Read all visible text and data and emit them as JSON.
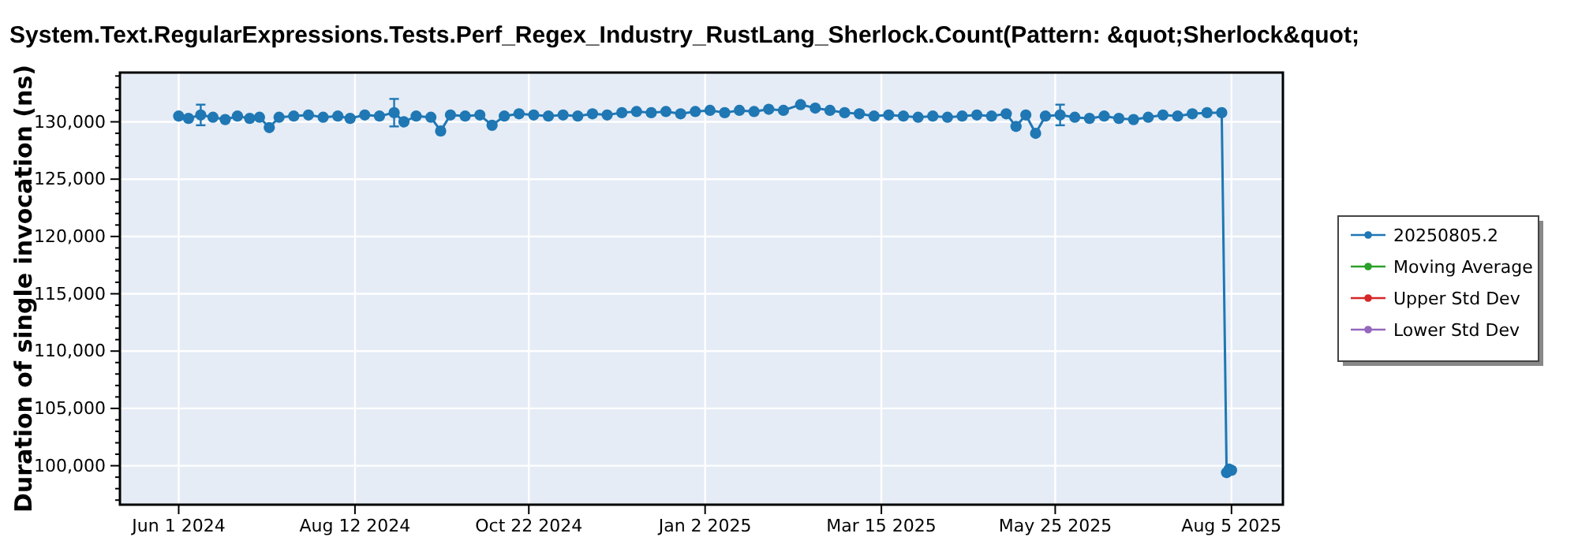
{
  "chart_data": {
    "type": "line",
    "title": "System.Text.RegularExpressions.Tests.Perf_Regex_Industry_RustLang_Sherlock.Count(Pattern: &quot;Sherlock&quot;",
    "ylabel": "Duration of single invocation (ns)",
    "xlim": [
      "2024-05-08",
      "2025-08-26"
    ],
    "xticks": [
      {
        "value": "2024-06-01",
        "label": "Jun 1 2024"
      },
      {
        "value": "2024-08-12",
        "label": "Aug 12 2024"
      },
      {
        "value": "2024-10-22",
        "label": "Oct 22 2024"
      },
      {
        "value": "2025-01-02",
        "label": "Jan 2 2025"
      },
      {
        "value": "2025-03-15",
        "label": "Mar 15 2025"
      },
      {
        "value": "2025-05-25",
        "label": "May 25 2025"
      },
      {
        "value": "2025-08-05",
        "label": "Aug 5 2025"
      }
    ],
    "ylim": [
      96600,
      134300
    ],
    "yticks": [
      {
        "value": 97000,
        "label": null
      },
      {
        "value": 98000,
        "label": null
      },
      {
        "value": 99000,
        "label": null
      },
      {
        "value": 100000,
        "label": "100,000"
      },
      {
        "value": 101000,
        "label": null
      },
      {
        "value": 102000,
        "label": null
      },
      {
        "value": 103000,
        "label": null
      },
      {
        "value": 104000,
        "label": null
      },
      {
        "value": 105000,
        "label": "105,000"
      },
      {
        "value": 106000,
        "label": null
      },
      {
        "value": 107000,
        "label": null
      },
      {
        "value": 108000,
        "label": null
      },
      {
        "value": 109000,
        "label": null
      },
      {
        "value": 110000,
        "label": "110,000"
      },
      {
        "value": 111000,
        "label": null
      },
      {
        "value": 112000,
        "label": null
      },
      {
        "value": 113000,
        "label": null
      },
      {
        "value": 114000,
        "label": null
      },
      {
        "value": 115000,
        "label": "115,000"
      },
      {
        "value": 116000,
        "label": null
      },
      {
        "value": 117000,
        "label": null
      },
      {
        "value": 118000,
        "label": null
      },
      {
        "value": 119000,
        "label": null
      },
      {
        "value": 120000,
        "label": "120,000"
      },
      {
        "value": 121000,
        "label": null
      },
      {
        "value": 122000,
        "label": null
      },
      {
        "value": 123000,
        "label": null
      },
      {
        "value": 124000,
        "label": null
      },
      {
        "value": 125000,
        "label": "125,000"
      },
      {
        "value": 126000,
        "label": null
      },
      {
        "value": 127000,
        "label": null
      },
      {
        "value": 128000,
        "label": null
      },
      {
        "value": 129000,
        "label": null
      },
      {
        "value": 130000,
        "label": "130,000"
      },
      {
        "value": 131000,
        "label": null
      },
      {
        "value": 132000,
        "label": null
      },
      {
        "value": 133000,
        "label": null
      },
      {
        "value": 134000,
        "label": null
      }
    ],
    "grid": true,
    "legend": "right",
    "marker": "circle",
    "line_style": "solid",
    "series": [
      {
        "name": "20250805.2",
        "color": "#1f77b4",
        "x": [
          "2024-06-01",
          "2024-06-05",
          "2024-06-10",
          "2024-06-15",
          "2024-06-20",
          "2024-06-25",
          "2024-06-30",
          "2024-07-04",
          "2024-07-08",
          "2024-07-12",
          "2024-07-18",
          "2024-07-24",
          "2024-07-30",
          "2024-08-05",
          "2024-08-10",
          "2024-08-16",
          "2024-08-22",
          "2024-08-28",
          "2024-09-01",
          "2024-09-06",
          "2024-09-12",
          "2024-09-16",
          "2024-09-20",
          "2024-09-26",
          "2024-10-02",
          "2024-10-07",
          "2024-10-12",
          "2024-10-18",
          "2024-10-24",
          "2024-10-30",
          "2024-11-05",
          "2024-11-11",
          "2024-11-17",
          "2024-11-23",
          "2024-11-29",
          "2024-12-05",
          "2024-12-11",
          "2024-12-17",
          "2024-12-23",
          "2024-12-29",
          "2025-01-04",
          "2025-01-10",
          "2025-01-16",
          "2025-01-22",
          "2025-01-28",
          "2025-02-03",
          "2025-02-10",
          "2025-02-16",
          "2025-02-22",
          "2025-02-28",
          "2025-03-06",
          "2025-03-12",
          "2025-03-18",
          "2025-03-24",
          "2025-03-30",
          "2025-04-05",
          "2025-04-11",
          "2025-04-17",
          "2025-04-23",
          "2025-04-29",
          "2025-05-05",
          "2025-05-09",
          "2025-05-13",
          "2025-05-17",
          "2025-05-21",
          "2025-05-27",
          "2025-06-02",
          "2025-06-08",
          "2025-06-14",
          "2025-06-20",
          "2025-06-26",
          "2025-07-02",
          "2025-07-08",
          "2025-07-14",
          "2025-07-20",
          "2025-07-26",
          "2025-08-01",
          "2025-08-03",
          "2025-08-04",
          "2025-08-05"
        ],
        "values": [
          130500,
          130300,
          130600,
          130400,
          130200,
          130500,
          130300,
          130400,
          129500,
          130400,
          130500,
          130600,
          130400,
          130500,
          130300,
          130600,
          130500,
          130800,
          130000,
          130500,
          130400,
          129200,
          130600,
          130500,
          130600,
          129700,
          130500,
          130700,
          130600,
          130500,
          130600,
          130500,
          130700,
          130600,
          130800,
          130900,
          130800,
          130900,
          130700,
          130900,
          131000,
          130800,
          131000,
          130900,
          131100,
          131000,
          131500,
          131200,
          131000,
          130800,
          130700,
          130500,
          130600,
          130500,
          130400,
          130500,
          130400,
          130500,
          130600,
          130500,
          130700,
          129600,
          130600,
          129000,
          130500,
          130600,
          130400,
          130300,
          130500,
          130300,
          130200,
          130400,
          130600,
          130500,
          130700,
          130800,
          130800,
          99400,
          99700,
          99600
        ],
        "errors": [
          null,
          null,
          900,
          null,
          null,
          null,
          null,
          null,
          null,
          null,
          null,
          null,
          null,
          null,
          null,
          null,
          null,
          1200,
          null,
          null,
          null,
          null,
          null,
          null,
          null,
          null,
          null,
          null,
          null,
          null,
          null,
          null,
          null,
          null,
          null,
          null,
          null,
          null,
          null,
          null,
          null,
          null,
          null,
          null,
          null,
          null,
          null,
          null,
          null,
          null,
          null,
          null,
          null,
          null,
          null,
          null,
          null,
          null,
          null,
          null,
          null,
          null,
          null,
          null,
          null,
          900,
          null,
          null,
          null,
          null,
          null,
          null,
          null,
          null,
          null,
          null,
          null,
          null,
          null,
          null
        ]
      },
      {
        "name": "Moving Average",
        "color": "#2ca02c"
      },
      {
        "name": "Upper Std Dev",
        "color": "#d62728"
      },
      {
        "name": "Lower Std Dev",
        "color": "#9467bd"
      }
    ]
  }
}
